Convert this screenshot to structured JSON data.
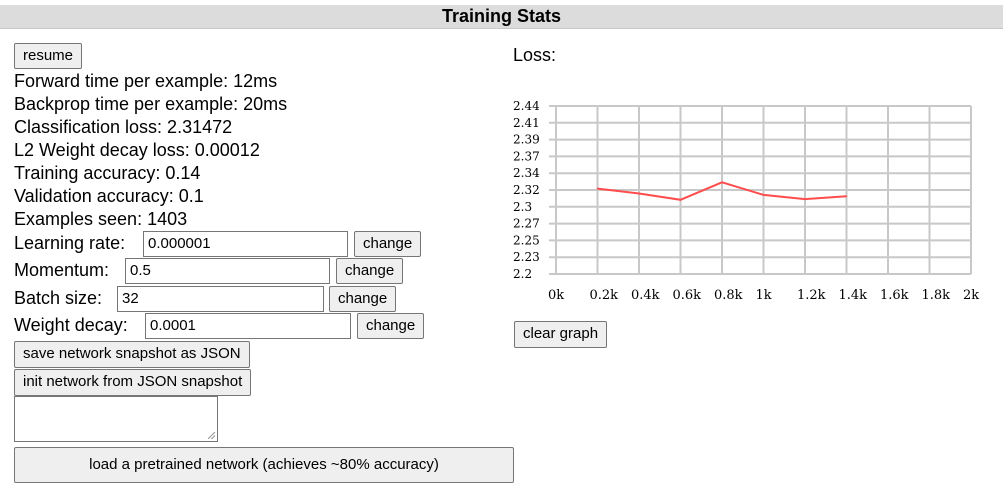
{
  "header": {
    "title": "Training Stats"
  },
  "controls": {
    "resume_label": "resume"
  },
  "stats": {
    "forward_time": "Forward time per example: 12ms",
    "backprop_time": "Backprop time per example: 20ms",
    "classification_loss": "Classification loss: 2.31472",
    "l2_loss": "L2 Weight decay loss: 0.00012",
    "training_accuracy": "Training accuracy: 0.14",
    "validation_accuracy": "Validation accuracy: 0.1",
    "examples_seen": "Examples seen: 1403"
  },
  "params": [
    {
      "label": "Learning rate:",
      "value": "0.000001",
      "button": "change"
    },
    {
      "label": "Momentum:",
      "value": "0.5",
      "button": "change"
    },
    {
      "label": "Batch size:",
      "value": "32",
      "button": "change"
    },
    {
      "label": "Weight decay:",
      "value": "0.0001",
      "button": "change"
    }
  ],
  "snapshot": {
    "save_label": "save network snapshot as JSON",
    "init_label": "init network from JSON snapshot",
    "textarea_value": ""
  },
  "pretrained": {
    "load_label": "load a pretrained network (achieves ~80% accuracy)"
  },
  "graph": {
    "label": "Loss:",
    "clear_label": "clear graph",
    "line_color": "#ff4c4c",
    "grid_color": "#c8c8c8"
  },
  "chart_data": {
    "type": "line",
    "title": "Loss:",
    "xlabel": "",
    "ylabel": "",
    "x_ticks": [
      "0k",
      "0.2k",
      "0.4k",
      "0.6k",
      "0.8k",
      "1k",
      "1.2k",
      "1.4k",
      "1.6k",
      "1.8k",
      "2k"
    ],
    "y_ticks": [
      "2.44",
      "2.41",
      "2.39",
      "2.37",
      "2.34",
      "2.32",
      "2.3",
      "2.27",
      "2.25",
      "2.23",
      "2.2"
    ],
    "xlim": [
      0,
      2000
    ],
    "ylim": [
      2.2,
      2.44
    ],
    "grid": true,
    "series": [
      {
        "x": [
          200,
          400,
          600,
          800,
          1000,
          1200,
          1400
        ],
        "y": [
          2.322,
          2.315,
          2.306,
          2.331,
          2.313,
          2.307,
          2.311
        ]
      }
    ]
  }
}
